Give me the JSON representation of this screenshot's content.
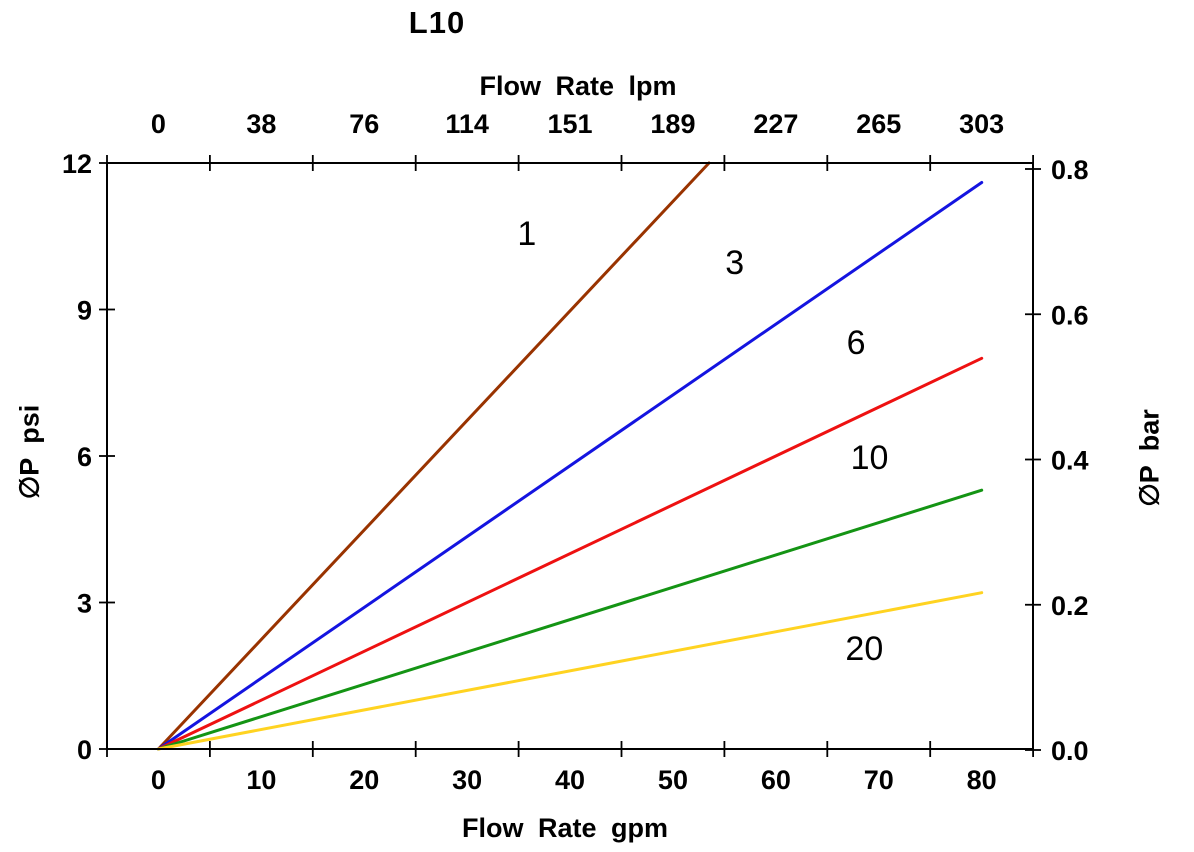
{
  "chart_data": {
    "type": "line",
    "title": "L10",
    "grid": false,
    "legend_position": "inline-labels",
    "x_bottom": {
      "label": "Flow Rate gpm",
      "tick_labels": [
        "0",
        "10",
        "20",
        "30",
        "40",
        "50",
        "60",
        "70",
        "80"
      ],
      "range": [
        0,
        80
      ],
      "boundary_ticks": true
    },
    "x_top": {
      "label": "Flow Rate lpm",
      "tick_labels": [
        "0",
        "38",
        "76",
        "114",
        "151",
        "189",
        "227",
        "265",
        "303"
      ],
      "range": [
        0,
        303
      ],
      "boundary_ticks": true
    },
    "y_left": {
      "label": "∅P psi",
      "tick_labels": [
        "0",
        "3",
        "6",
        "9",
        "12"
      ],
      "range": [
        0,
        12
      ]
    },
    "y_right": {
      "label": "∅P bar",
      "tick_labels": [
        "0.0",
        "0.2",
        "0.4",
        "0.6",
        "0.8"
      ],
      "range": [
        0,
        0.8
      ]
    },
    "series": [
      {
        "name": "1",
        "color": "#993300",
        "points": [
          [
            0,
            0
          ],
          [
            53.5,
            12.0
          ]
        ],
        "label_at": [
          35.8,
          10.57
        ]
      },
      {
        "name": "3",
        "color": "#1414E0",
        "points": [
          [
            0,
            0
          ],
          [
            80,
            11.6
          ]
        ],
        "label_at": [
          56.0,
          9.97
        ]
      },
      {
        "name": "6",
        "color": "#EE1111",
        "points": [
          [
            0,
            0
          ],
          [
            80,
            8.0
          ]
        ],
        "label_at": [
          67.8,
          8.33
        ]
      },
      {
        "name": "10",
        "color": "#149414",
        "points": [
          [
            0,
            0
          ],
          [
            80,
            5.3
          ]
        ],
        "label_at": [
          69.1,
          5.98
        ]
      },
      {
        "name": "20",
        "color": "#FFD321",
        "points": [
          [
            0,
            0
          ],
          [
            80,
            3.2
          ]
        ],
        "label_at": [
          68.6,
          2.07
        ]
      }
    ],
    "axis_color": "#000000"
  }
}
